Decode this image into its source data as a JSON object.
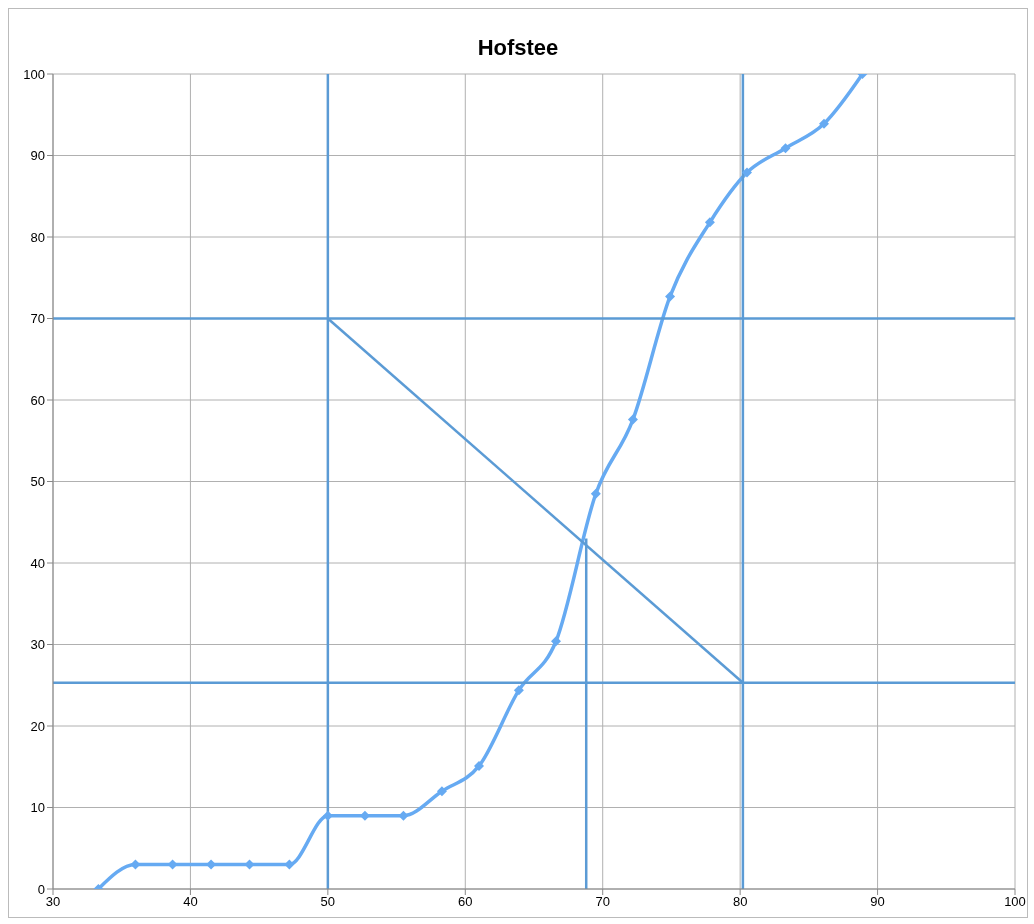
{
  "chart_data": {
    "type": "line",
    "title": "Hofstee",
    "xlim": [
      30,
      100
    ],
    "xticks": [
      30,
      40,
      50,
      60,
      70,
      80,
      90,
      100
    ],
    "ylim": [
      0,
      100
    ],
    "yticks": [
      0,
      10,
      20,
      30,
      40,
      50,
      60,
      70,
      80,
      90,
      100
    ],
    "grid": true,
    "legend": false,
    "line_style": "solid",
    "series": [
      {
        "color": "#66aaf2",
        "marker": "diamond",
        "x": [
          33.3,
          36.0,
          38.7,
          41.5,
          44.3,
          47.2,
          50.0,
          52.7,
          55.5,
          58.3,
          61.0,
          63.9,
          66.6,
          69.5,
          72.2,
          74.9,
          77.8,
          80.5,
          83.3,
          86.1,
          88.9
        ],
        "values": [
          0,
          3,
          3,
          3,
          3,
          3,
          9,
          9,
          9,
          12,
          15.1,
          24.4,
          30.4,
          48.5,
          57.6,
          72.7,
          81.8,
          87.9,
          90.9,
          93.9,
          100
        ]
      },
      {
        "color": "#5b9bd5",
        "marker": "none",
        "x": [
          50,
          80.2
        ],
        "values": [
          70,
          25.3
        ]
      },
      {
        "color": "#5b9bd5",
        "marker": "none",
        "x": [
          68.8,
          68.8
        ],
        "values": [
          43,
          0
        ]
      },
      {
        "color": "#5b9bd5",
        "marker": "none",
        "x": [
          50,
          50
        ],
        "values": [
          0,
          100
        ]
      },
      {
        "color": "#5b9bd5",
        "marker": "none",
        "x": [
          80.2,
          80.2
        ],
        "values": [
          0,
          100
        ]
      },
      {
        "color": "#5b9bd5",
        "marker": "none",
        "x": [
          30,
          100
        ],
        "values": [
          70,
          70
        ]
      },
      {
        "color": "#5b9bd5",
        "marker": "none",
        "x": [
          30,
          100
        ],
        "values": [
          25.3,
          25.3
        ]
      }
    ]
  }
}
